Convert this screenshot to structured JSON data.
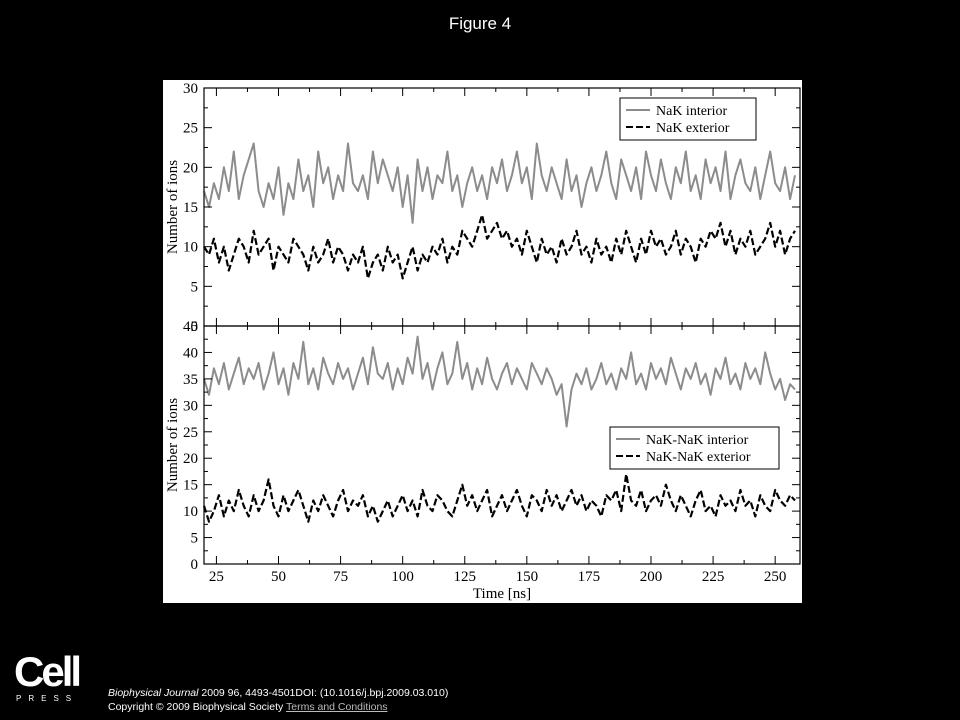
{
  "figure_title": "Figure 4",
  "logo": {
    "word": "Cell",
    "sub": "PRESS"
  },
  "footer": {
    "journal": "Biophysical Journal",
    "citation": " 2009 96, 4493-4501DOI: (10.1016/j.bpj.2009.03.010)",
    "copyright": "Copyright © 2009 Biophysical Society ",
    "terms": "Terms and Conditions"
  },
  "colors": {
    "interior": "#8c8c8c",
    "exterior": "#000000",
    "background": "#000000"
  },
  "chart_data": [
    {
      "type": "line",
      "panel": "top",
      "xlabel": "",
      "ylabel": "Number of ions",
      "xlim": [
        20,
        260
      ],
      "ylim": [
        0,
        30
      ],
      "yticks": [
        0,
        5,
        10,
        15,
        20,
        25,
        30
      ],
      "xticks": [
        25,
        50,
        75,
        100,
        125,
        150,
        175,
        200,
        225,
        250
      ],
      "show_xtick_labels": false,
      "legend_position": "top-right",
      "x": [
        20,
        22,
        24,
        26,
        28,
        30,
        32,
        34,
        36,
        38,
        40,
        42,
        44,
        46,
        48,
        50,
        52,
        54,
        56,
        58,
        60,
        62,
        64,
        66,
        68,
        70,
        72,
        74,
        76,
        78,
        80,
        82,
        84,
        86,
        88,
        90,
        92,
        94,
        96,
        98,
        100,
        102,
        104,
        106,
        108,
        110,
        112,
        114,
        116,
        118,
        120,
        122,
        124,
        126,
        128,
        130,
        132,
        134,
        136,
        138,
        140,
        142,
        144,
        146,
        148,
        150,
        152,
        154,
        156,
        158,
        160,
        162,
        164,
        166,
        168,
        170,
        172,
        174,
        176,
        178,
        180,
        182,
        184,
        186,
        188,
        190,
        192,
        194,
        196,
        198,
        200,
        202,
        204,
        206,
        208,
        210,
        212,
        214,
        216,
        218,
        220,
        222,
        224,
        226,
        228,
        230,
        232,
        234,
        236,
        238,
        240,
        242,
        244,
        246,
        248,
        250,
        252,
        254,
        256,
        258
      ],
      "series": [
        {
          "name": "NaK interior",
          "style": "solid",
          "values": [
            17,
            15,
            18,
            16,
            20,
            17,
            22,
            16,
            19,
            21,
            23,
            17,
            15,
            18,
            16,
            20,
            14,
            18,
            16,
            21,
            17,
            19,
            15,
            22,
            18,
            20,
            16,
            19,
            17,
            23,
            18,
            17,
            19,
            16,
            22,
            18,
            21,
            19,
            17,
            20,
            15,
            19,
            13,
            21,
            17,
            20,
            16,
            19,
            18,
            22,
            17,
            19,
            15,
            18,
            20,
            17,
            19,
            16,
            20,
            18,
            21,
            17,
            19,
            22,
            18,
            20,
            16,
            23,
            19,
            17,
            20,
            18,
            16,
            21,
            17,
            19,
            15,
            18,
            20,
            17,
            19,
            22,
            18,
            16,
            21,
            19,
            17,
            20,
            16,
            22,
            19,
            17,
            21,
            18,
            16,
            20,
            18,
            22,
            17,
            19,
            16,
            21,
            18,
            20,
            17,
            22,
            16,
            19,
            21,
            18,
            17,
            20,
            16,
            19,
            22,
            18,
            17,
            20,
            16,
            19
          ]
        },
        {
          "name": "NaK exterior",
          "style": "dashed",
          "values": [
            10,
            9,
            11,
            8,
            10,
            7,
            9,
            11,
            10,
            8,
            12,
            9,
            10,
            11,
            7,
            10,
            9,
            8,
            11,
            10,
            9,
            7,
            10,
            8,
            9,
            11,
            8,
            10,
            9,
            7,
            9,
            8,
            10,
            6,
            8,
            9,
            7,
            10,
            8,
            9,
            6,
            8,
            10,
            7,
            9,
            8,
            10,
            9,
            11,
            8,
            10,
            9,
            12,
            11,
            10,
            12,
            14,
            11,
            12,
            13,
            11,
            12,
            10,
            11,
            9,
            12,
            10,
            8,
            11,
            9,
            10,
            8,
            11,
            9,
            10,
            12,
            9,
            10,
            8,
            11,
            9,
            10,
            8,
            11,
            9,
            12,
            10,
            8,
            11,
            9,
            12,
            10,
            11,
            9,
            10,
            12,
            9,
            11,
            10,
            8,
            11,
            10,
            12,
            11,
            13,
            10,
            12,
            9,
            11,
            10,
            12,
            9,
            10,
            11,
            13,
            10,
            12,
            9,
            11,
            12
          ]
        }
      ]
    },
    {
      "type": "line",
      "panel": "bottom",
      "xlabel": "Time [ns]",
      "ylabel": "Number of ions",
      "xlim": [
        20,
        260
      ],
      "ylim": [
        0,
        45
      ],
      "yticks": [
        0,
        5,
        10,
        15,
        20,
        25,
        30,
        35,
        40,
        45
      ],
      "xticks": [
        25,
        50,
        75,
        100,
        125,
        150,
        175,
        200,
        225,
        250
      ],
      "show_xtick_labels": true,
      "legend_position": "center-right",
      "x": [
        20,
        22,
        24,
        26,
        28,
        30,
        32,
        34,
        36,
        38,
        40,
        42,
        44,
        46,
        48,
        50,
        52,
        54,
        56,
        58,
        60,
        62,
        64,
        66,
        68,
        70,
        72,
        74,
        76,
        78,
        80,
        82,
        84,
        86,
        88,
        90,
        92,
        94,
        96,
        98,
        100,
        102,
        104,
        106,
        108,
        110,
        112,
        114,
        116,
        118,
        120,
        122,
        124,
        126,
        128,
        130,
        132,
        134,
        136,
        138,
        140,
        142,
        144,
        146,
        148,
        150,
        152,
        154,
        156,
        158,
        160,
        162,
        164,
        166,
        168,
        170,
        172,
        174,
        176,
        178,
        180,
        182,
        184,
        186,
        188,
        190,
        192,
        194,
        196,
        198,
        200,
        202,
        204,
        206,
        208,
        210,
        212,
        214,
        216,
        218,
        220,
        222,
        224,
        226,
        228,
        230,
        232,
        234,
        236,
        238,
        240,
        242,
        244,
        246,
        248,
        250,
        252,
        254,
        256,
        258
      ],
      "series": [
        {
          "name": "NaK-NaK interior",
          "style": "solid",
          "values": [
            35,
            32,
            37,
            34,
            38,
            33,
            36,
            39,
            34,
            37,
            35,
            38,
            33,
            36,
            40,
            34,
            37,
            32,
            38,
            35,
            42,
            34,
            37,
            33,
            39,
            36,
            34,
            38,
            35,
            37,
            33,
            36,
            39,
            34,
            41,
            36,
            35,
            38,
            33,
            37,
            34,
            39,
            36,
            43,
            35,
            38,
            33,
            37,
            40,
            34,
            36,
            42,
            35,
            38,
            33,
            37,
            34,
            39,
            35,
            33,
            36,
            38,
            34,
            37,
            35,
            33,
            38,
            36,
            34,
            37,
            35,
            32,
            34,
            26,
            33,
            36,
            34,
            37,
            33,
            35,
            38,
            34,
            36,
            33,
            37,
            35,
            40,
            34,
            36,
            33,
            38,
            35,
            37,
            34,
            39,
            36,
            33,
            37,
            35,
            38,
            34,
            36,
            32,
            37,
            35,
            39,
            34,
            36,
            33,
            38,
            35,
            37,
            34,
            40,
            36,
            33,
            35,
            31,
            34,
            33
          ]
        },
        {
          "name": "NaK-NaK exterior",
          "style": "dashed",
          "values": [
            11,
            8,
            10,
            13,
            9,
            12,
            10,
            14,
            11,
            9,
            13,
            10,
            12,
            16,
            11,
            9,
            13,
            10,
            12,
            14,
            11,
            8,
            12,
            10,
            13,
            11,
            9,
            12,
            14,
            10,
            12,
            11,
            13,
            9,
            11,
            8,
            10,
            12,
            9,
            11,
            13,
            10,
            12,
            9,
            14,
            11,
            10,
            13,
            12,
            10,
            9,
            12,
            15,
            11,
            13,
            10,
            12,
            14,
            9,
            11,
            13,
            10,
            12,
            14,
            11,
            9,
            13,
            12,
            10,
            14,
            11,
            13,
            10,
            12,
            14,
            11,
            13,
            10,
            12,
            11,
            9,
            13,
            12,
            14,
            10,
            17,
            12,
            11,
            14,
            10,
            12,
            13,
            11,
            15,
            12,
            10,
            13,
            11,
            9,
            12,
            14,
            10,
            11,
            9,
            13,
            11,
            12,
            10,
            14,
            11,
            12,
            9,
            13,
            11,
            10,
            14,
            12,
            11,
            13,
            12
          ]
        }
      ]
    }
  ]
}
